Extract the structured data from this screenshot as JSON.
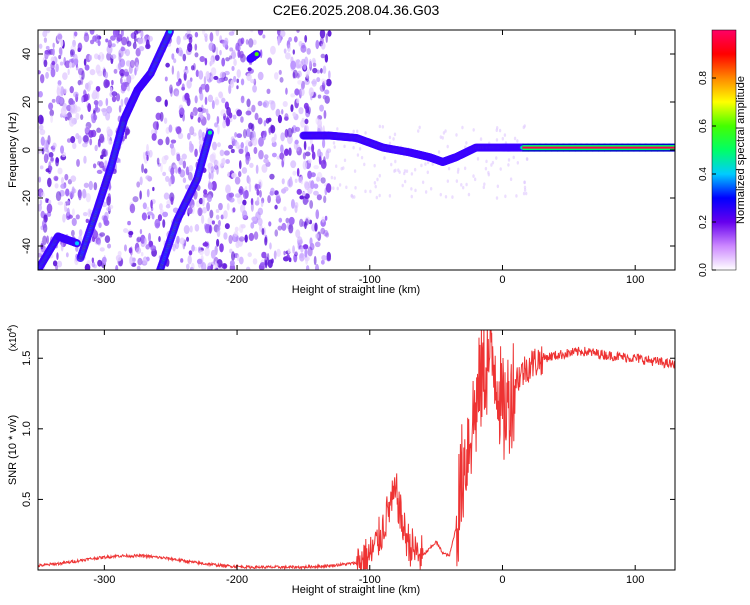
{
  "title": "C2E6.2025.208.04.36.G03",
  "chart_data": [
    {
      "type": "heatmap",
      "xlabel": "Height of straight line (km)",
      "ylabel": "Frequency (Hz)",
      "xlim": [
        -350,
        130
      ],
      "ylim": [
        -50,
        50
      ],
      "x_ticks": [
        -300,
        -200,
        -100,
        0,
        100
      ],
      "y_ticks": [
        -40,
        -20,
        0,
        20,
        40
      ],
      "colorbar": {
        "label": "Normalized spectral amplitude",
        "range": [
          0,
          1
        ],
        "ticks": [
          0.0,
          0.2,
          0.4,
          0.6,
          0.8
        ]
      },
      "tracks": [
        {
          "x": [
            -350,
            -335,
            -320
          ],
          "y": [
            -50,
            -36,
            -39
          ]
        },
        {
          "x": [
            -318,
            -305,
            -295,
            -285,
            -275,
            -265,
            -250
          ],
          "y": [
            -45,
            -24,
            -7,
            13,
            25,
            32,
            50
          ]
        },
        {
          "x": [
            -258,
            -245,
            -230,
            -220
          ],
          "y": [
            -50,
            -29,
            -12,
            8
          ]
        },
        {
          "x": [
            -190,
            -185
          ],
          "y": [
            38,
            40
          ]
        },
        {
          "x": [
            -150,
            -130,
            -110,
            -90,
            -70,
            -55,
            -45,
            -35,
            -20,
            0,
            15,
            130
          ],
          "y": [
            6,
            6,
            5,
            1,
            -1,
            -3,
            -5,
            -3,
            1,
            1,
            1,
            1
          ]
        }
      ]
    },
    {
      "type": "line",
      "xlabel": "Height of straight line (km)",
      "ylabel": "SNR (10 * v/v)",
      "y_multiplier": "(x10",
      "y_multiplier_exp": "4",
      "y_multiplier_close": ")",
      "xlim": [
        -350,
        130
      ],
      "ylim": [
        0,
        1.7
      ],
      "x_ticks": [
        -300,
        -200,
        -100,
        0,
        100
      ],
      "y_ticks": [
        0.5,
        1.0,
        1.5
      ],
      "color": "#ee3333",
      "series": [
        {
          "x": [
            -350,
            -330,
            -310,
            -290,
            -270,
            -250,
            -230,
            -210,
            -190,
            -170,
            -150,
            -130,
            -110,
            -100,
            -95,
            -90,
            -85,
            -80,
            -75,
            -70,
            -65,
            -60,
            -55,
            -50,
            -45,
            -40,
            -35,
            -30,
            -25,
            -20,
            -15,
            -10,
            -5,
            0,
            5,
            10,
            20,
            30,
            40,
            60,
            80,
            100,
            120,
            130
          ],
          "y": [
            0.03,
            0.05,
            0.08,
            0.1,
            0.1,
            0.08,
            0.05,
            0.03,
            0.02,
            0.02,
            0.02,
            0.03,
            0.05,
            0.1,
            0.18,
            0.3,
            0.45,
            0.55,
            0.3,
            0.18,
            0.12,
            0.1,
            0.15,
            0.2,
            0.12,
            0.1,
            0.3,
            0.7,
            0.95,
            1.15,
            1.4,
            1.5,
            1.45,
            1.1,
            1.2,
            1.35,
            1.45,
            1.5,
            1.52,
            1.55,
            1.52,
            1.5,
            1.47,
            1.45
          ]
        }
      ]
    }
  ]
}
